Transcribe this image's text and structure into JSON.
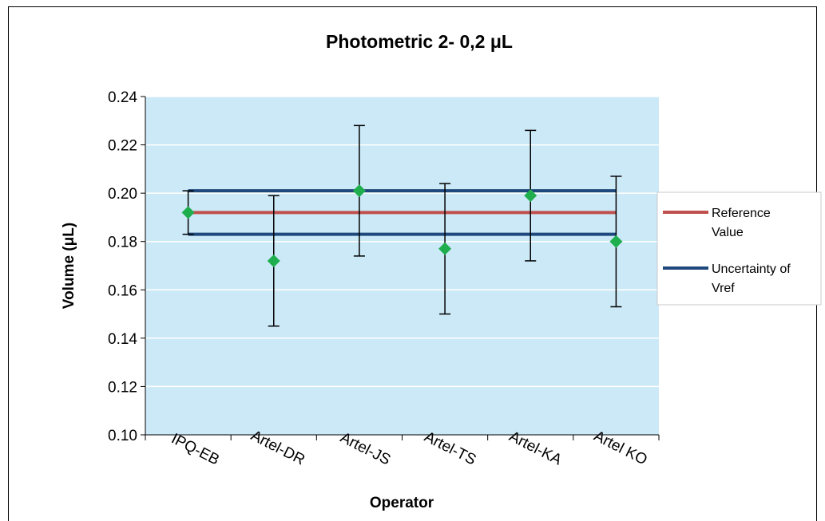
{
  "chart_data": {
    "type": "scatter",
    "title": "Photometric 2- 0,2 μL",
    "xlabel": "Operator",
    "ylabel": "Volume (μL)",
    "categories": [
      "IPQ-EB",
      "Artel-DR",
      "Artel-JS",
      "Artel-TS",
      "Artel-KA",
      "Artel KO"
    ],
    "ylim": [
      0.1,
      0.24
    ],
    "yticks": [
      "0.10",
      "0.12",
      "0.14",
      "0.16",
      "0.18",
      "0.20",
      "0.22",
      "0.24"
    ],
    "grid": true,
    "plot_background": "#CCE9F8",
    "legend_position": "right",
    "points": {
      "values": [
        0.192,
        0.172,
        0.201,
        0.177,
        0.199,
        0.18
      ],
      "error_low": [
        0.183,
        0.145,
        0.174,
        0.15,
        0.172,
        0.153
      ],
      "error_high": [
        0.201,
        0.199,
        0.228,
        0.204,
        0.226,
        0.207
      ],
      "color": "#1FAE4E"
    },
    "series": [
      {
        "name": "Reference Value",
        "value": 0.192,
        "color": "#C0504D"
      },
      {
        "name": "Uncertainty of Vref",
        "values": [
          0.183,
          0.201
        ],
        "color": "#1F497D"
      }
    ],
    "legend": {
      "entry1_line1": "Reference",
      "entry1_line2": "Value",
      "entry2_line1": "Uncertainty of",
      "entry2_line2": "Vref"
    }
  }
}
